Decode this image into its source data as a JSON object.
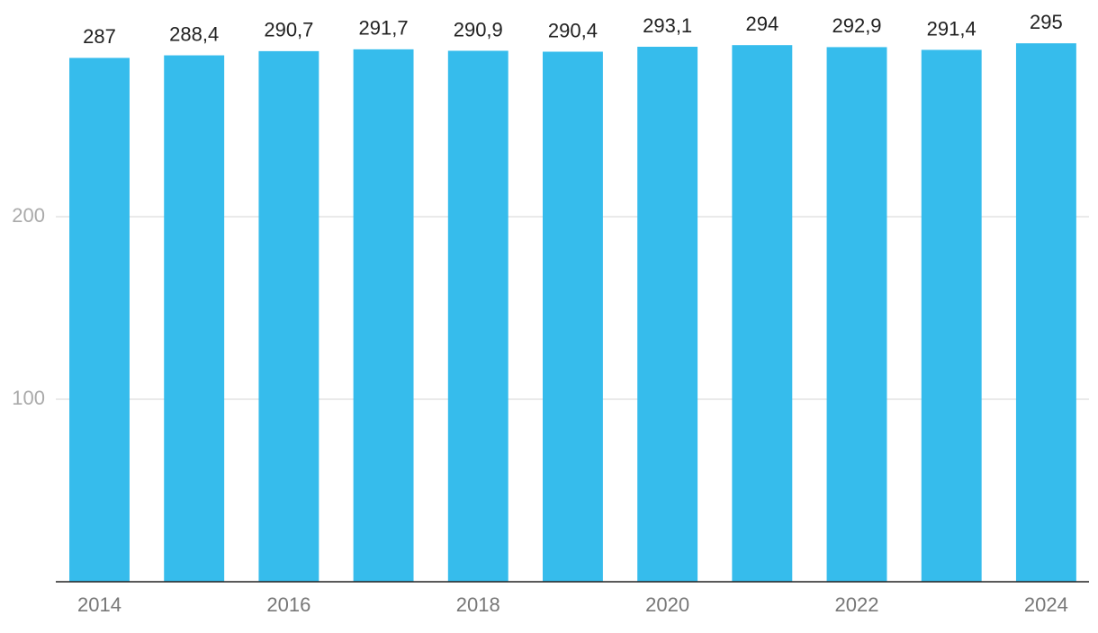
{
  "chart_data": {
    "type": "bar",
    "categories": [
      "2014",
      null,
      "2016",
      null,
      "2018",
      null,
      "2020",
      null,
      "2022",
      null,
      "2024"
    ],
    "values": [
      287,
      288.4,
      290.7,
      291.7,
      290.9,
      290.4,
      293.1,
      294,
      292.9,
      291.4,
      295
    ],
    "value_labels": [
      "287",
      "288,4",
      "290,7",
      "291,7",
      "290,9",
      "290,4",
      "293,1",
      "294",
      "292,9",
      "291,4",
      "295"
    ],
    "color": "#36bcec",
    "ylim": [
      0,
      300
    ],
    "yticks": [
      100,
      200
    ],
    "grid": true
  }
}
